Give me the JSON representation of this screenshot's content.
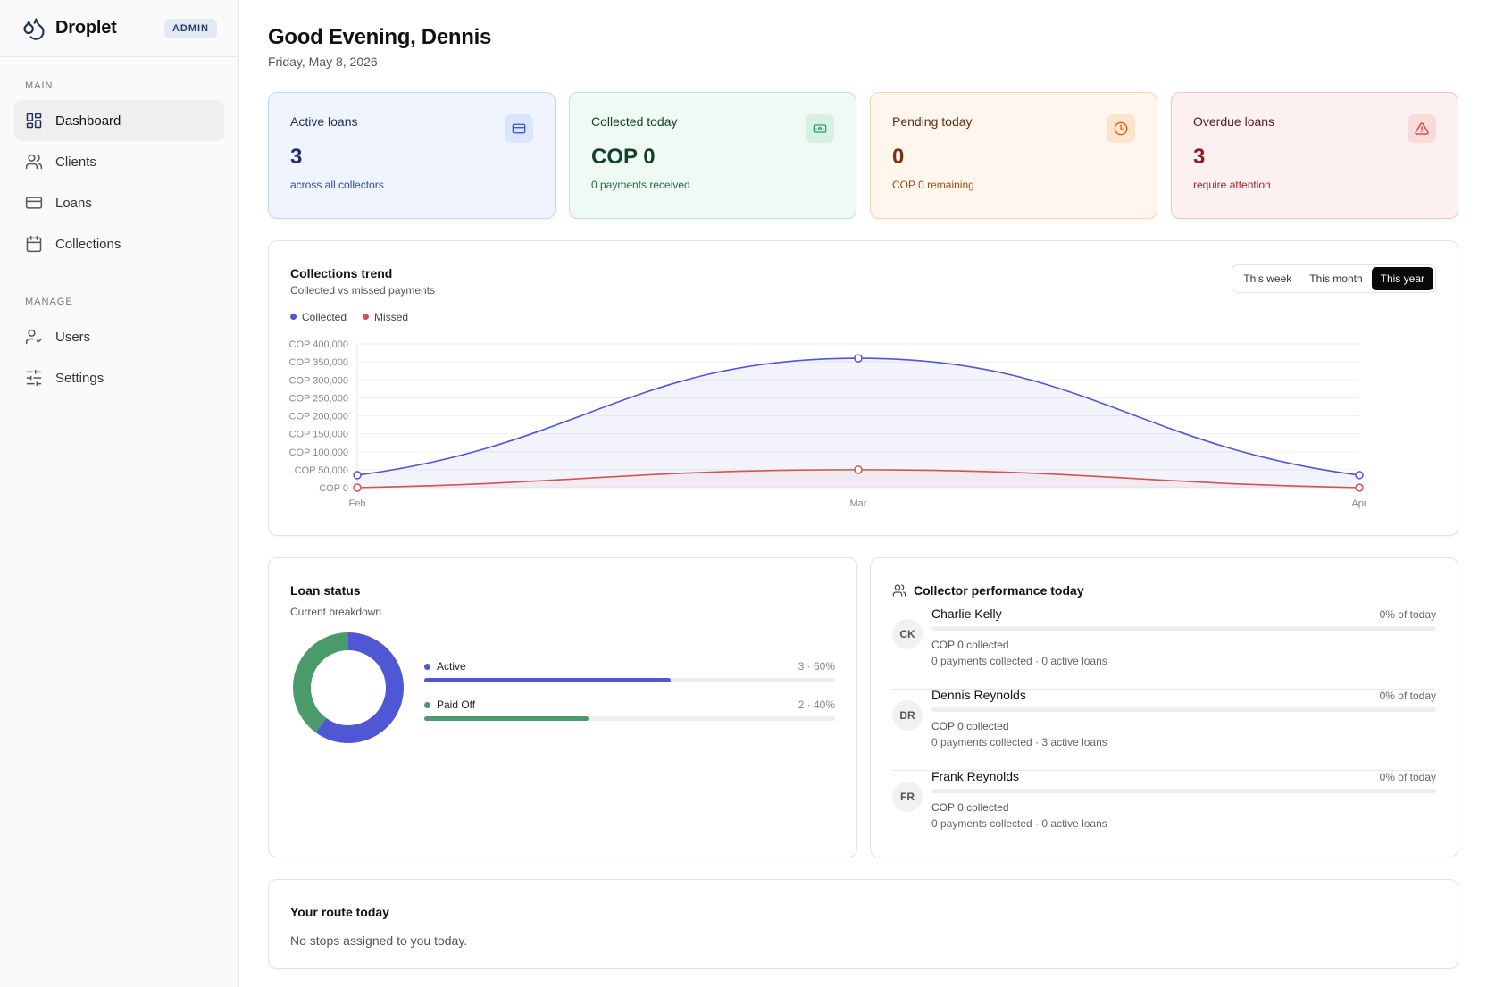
{
  "brand": {
    "name": "Droplet",
    "role_badge": "ADMIN"
  },
  "nav": {
    "main_label": "MAIN",
    "main_items": [
      {
        "label": "Dashboard",
        "icon": "dashboard-icon",
        "active": true
      },
      {
        "label": "Clients",
        "icon": "users-icon"
      },
      {
        "label": "Loans",
        "icon": "credit-card-icon"
      },
      {
        "label": "Collections",
        "icon": "calendar-icon"
      }
    ],
    "manage_label": "MANAGE",
    "manage_items": [
      {
        "label": "Users",
        "icon": "user-check-icon"
      },
      {
        "label": "Settings",
        "icon": "sliders-icon"
      }
    ]
  },
  "header": {
    "greeting": "Good Evening, Dennis",
    "date": "Friday, May 8, 2026"
  },
  "stats": [
    {
      "label": "Active loans",
      "value": "3",
      "sub": "across all collectors",
      "icon": "credit-card-icon",
      "color": "#3b5bdb"
    },
    {
      "label": "Collected today",
      "value": "COP 0",
      "sub": "0 payments received",
      "icon": "banknote-icon",
      "color": "#2f9e66"
    },
    {
      "label": "Pending today",
      "value": "0",
      "sub": "COP 0 remaining",
      "icon": "clock-icon",
      "color": "#e8590c"
    },
    {
      "label": "Overdue loans",
      "value": "3",
      "sub": "require attention",
      "icon": "alert-triangle-icon",
      "color": "#e03131"
    }
  ],
  "trend": {
    "title": "Collections trend",
    "subtitle": "Collected vs missed payments",
    "ranges": [
      "This week",
      "This month",
      "This year"
    ],
    "selected_range": "This year"
  },
  "chart_data": {
    "type": "area",
    "x": [
      "Feb",
      "Mar",
      "Apr"
    ],
    "series": [
      {
        "name": "Collected",
        "values": [
          35000,
          360000,
          35000
        ],
        "color": "#5057d5"
      },
      {
        "name": "Missed",
        "values": [
          0,
          50000,
          0
        ],
        "color": "#d05454"
      }
    ],
    "yticks": [
      "COP 0",
      "COP 50,000",
      "COP 100,000",
      "COP 150,000",
      "COP 200,000",
      "COP 250,000",
      "COP 300,000",
      "COP 350,000",
      "COP 400,000"
    ],
    "ylim": [
      0,
      400000
    ],
    "grid": true,
    "legend": "top-left"
  },
  "loan_status": {
    "title": "Loan status",
    "subtitle": "Current breakdown",
    "items": [
      {
        "label": "Active",
        "count": "3",
        "pct_label": "60%",
        "fraction": 0.6,
        "color": "#5057d5"
      },
      {
        "label": "Paid Off",
        "count": "2",
        "pct_label": "40%",
        "fraction": 0.4,
        "color": "#4a9a6c"
      }
    ]
  },
  "performance": {
    "title": "Collector performance today",
    "collectors": [
      {
        "initials": "CK",
        "name": "Charlie Kelly",
        "pct": "0% of today",
        "collected": "COP 0 collected",
        "meta": "0 payments collected · 0 active loans"
      },
      {
        "initials": "DR",
        "name": "Dennis Reynolds",
        "pct": "0% of today",
        "collected": "COP 0 collected",
        "meta": "0 payments collected · 3 active loans"
      },
      {
        "initials": "FR",
        "name": "Frank Reynolds",
        "pct": "0% of today",
        "collected": "COP 0 collected",
        "meta": "0 payments collected · 0 active loans"
      }
    ]
  },
  "route": {
    "title": "Your route today",
    "message": "No stops assigned to you today."
  }
}
